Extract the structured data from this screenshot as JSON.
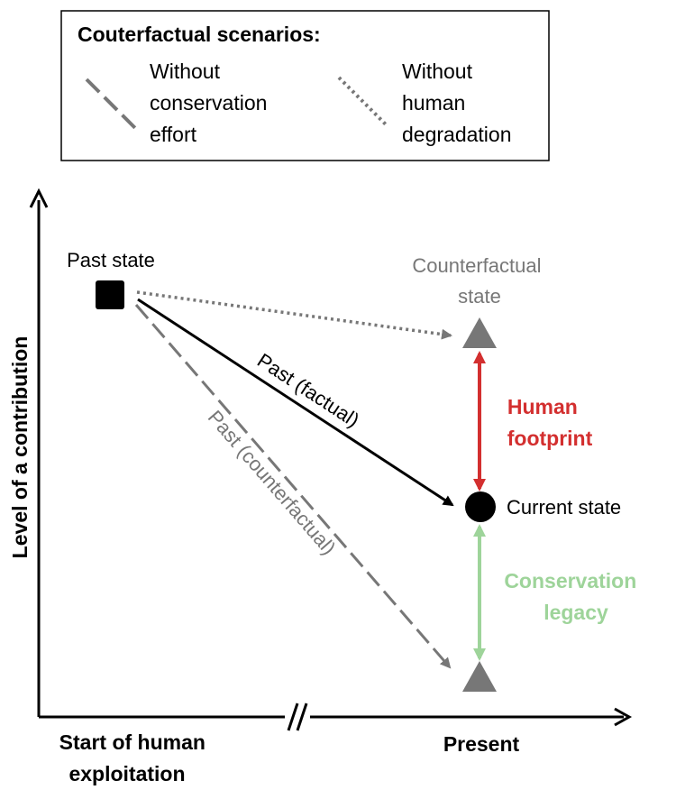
{
  "legend": {
    "title": "Couterfactual scenarios:",
    "dashed": {
      "line1": "Without",
      "line2": "conservation",
      "line3": "effort"
    },
    "dotted": {
      "line1": "Without",
      "line2": "human",
      "line3": "degradation"
    }
  },
  "axes": {
    "y_label": "Level of a contribution",
    "x_start": {
      "line1": "Start of human",
      "line2": "exploitation"
    },
    "x_end": "Present"
  },
  "nodes": {
    "past_state": "Past state",
    "counterfactual_state": {
      "line1": "Counterfactual",
      "line2": "state"
    },
    "current_state": "Current state"
  },
  "paths": {
    "factual": "Past (factual)",
    "counterfactual": "Past (counterfactual)"
  },
  "measures": {
    "human_footprint": {
      "line1": "Human",
      "line2": "footprint"
    },
    "conservation_legacy": {
      "line1": "Conservation",
      "line2": "legacy"
    }
  },
  "colors": {
    "factual": "#000000",
    "counterfactual": "#777777",
    "human_footprint": "#d32f2f",
    "conservation_legacy": "#9ed49a"
  }
}
